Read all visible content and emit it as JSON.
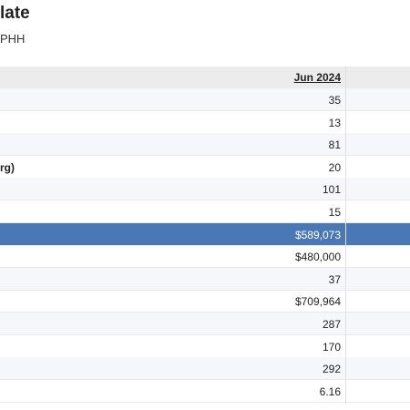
{
  "header": {
    "title": "late",
    "subtitle": "PHH"
  },
  "table": {
    "column": "Jun 2024",
    "highlighted_row": 6,
    "rows": [
      {
        "value": "35"
      },
      {
        "value": "13"
      },
      {
        "value": "81"
      },
      {
        "label": "rg)",
        "value": "20"
      },
      {
        "value": "101"
      },
      {
        "value": "15"
      },
      {
        "value": "$589,073"
      },
      {
        "value": "$480,000"
      },
      {
        "value": "37"
      },
      {
        "value": "$709,964"
      },
      {
        "value": "287"
      },
      {
        "value": "170"
      },
      {
        "value": "292"
      },
      {
        "value": "6.16"
      }
    ]
  }
}
